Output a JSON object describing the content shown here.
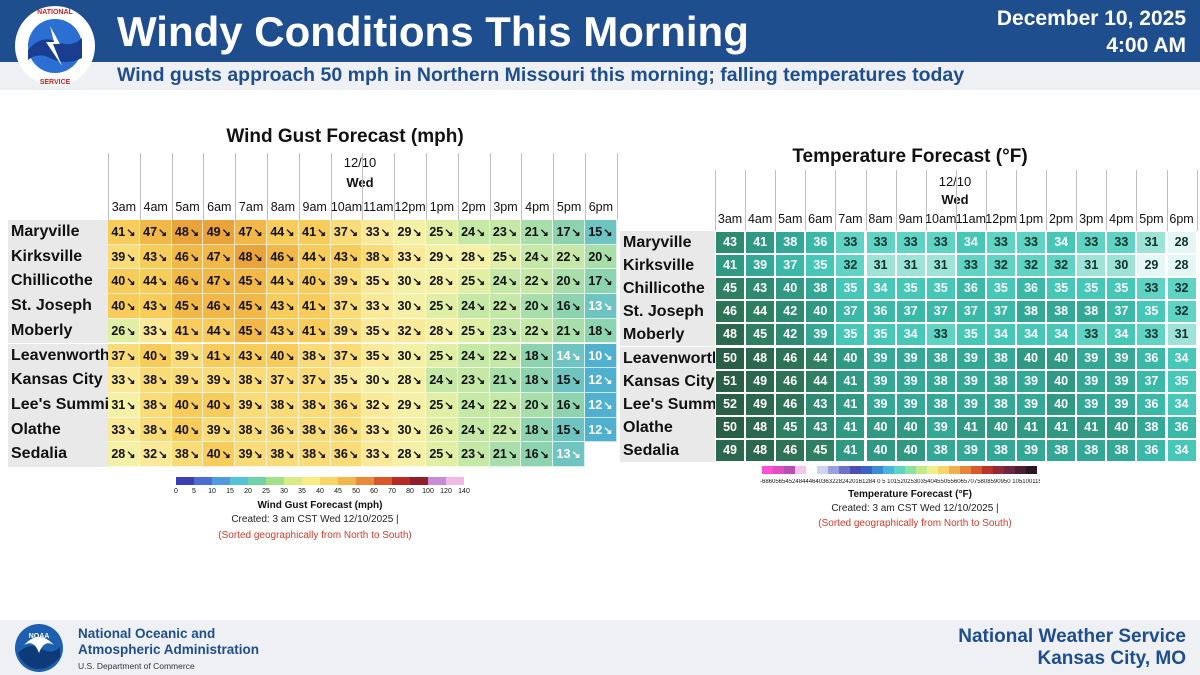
{
  "header": {
    "title": "Windy Conditions This Morning",
    "date": "December 10, 2025",
    "time": "4:00 AM",
    "subtitle": "Wind gusts approach 50 mph in Northern Missouri this morning; falling temperatures today",
    "logo_text": "NATIONAL WEATHER SERVICE"
  },
  "chart_data": [
    {
      "type": "heatmap",
      "title": "Wind Gust Forecast (mph)",
      "date_label": "12/10",
      "day_label": "Wed",
      "x": [
        "3am",
        "4am",
        "5am",
        "6am",
        "7am",
        "8am",
        "9am",
        "10am",
        "11am",
        "12pm",
        "1pm",
        "2pm",
        "3pm",
        "4pm",
        "5pm",
        "6pm"
      ],
      "y": [
        "Maryville",
        "Kirksville",
        "Chillicothe",
        "St. Joseph",
        "Moberly",
        "Leavenworth",
        "Kansas City",
        "Lee's Summit",
        "Olathe",
        "Sedalia"
      ],
      "values": [
        [
          41,
          47,
          48,
          49,
          47,
          44,
          41,
          37,
          33,
          29,
          25,
          24,
          23,
          21,
          17,
          15
        ],
        [
          39,
          43,
          46,
          47,
          48,
          46,
          44,
          43,
          38,
          33,
          29,
          28,
          25,
          24,
          22,
          20
        ],
        [
          40,
          44,
          46,
          47,
          45,
          44,
          40,
          39,
          35,
          30,
          28,
          25,
          24,
          22,
          20,
          17
        ],
        [
          40,
          43,
          45,
          46,
          45,
          43,
          41,
          37,
          33,
          30,
          25,
          24,
          22,
          20,
          16,
          13
        ],
        [
          26,
          33,
          41,
          44,
          45,
          43,
          41,
          39,
          35,
          32,
          28,
          25,
          23,
          22,
          21,
          18
        ],
        [
          37,
          40,
          39,
          41,
          43,
          40,
          38,
          37,
          35,
          30,
          25,
          24,
          22,
          18,
          14,
          10
        ],
        [
          33,
          38,
          39,
          39,
          38,
          37,
          37,
          35,
          30,
          28,
          24,
          23,
          21,
          18,
          15,
          12
        ],
        [
          31,
          38,
          40,
          40,
          39,
          38,
          38,
          36,
          32,
          29,
          25,
          24,
          22,
          20,
          16,
          12
        ],
        [
          33,
          38,
          40,
          39,
          38,
          36,
          38,
          36,
          33,
          30,
          26,
          24,
          22,
          18,
          15,
          12
        ],
        [
          28,
          32,
          38,
          40,
          39,
          38,
          38,
          36,
          33,
          28,
          25,
          23,
          21,
          16,
          13,
          null
        ]
      ],
      "legend_title": "Wind Gust Forecast (mph)",
      "legend_ticks": [
        "0",
        "5",
        "10",
        "15",
        "20",
        "25",
        "30",
        "35",
        "40",
        "45",
        "50",
        "60",
        "70",
        "80",
        "100",
        "120",
        "140"
      ],
      "created": "Created: 3 am CST Wed 12/10/2025  |",
      "sorted_note": "(Sorted geographically from North to South)"
    },
    {
      "type": "heatmap",
      "title": "Temperature Forecast (°F)",
      "date_label": "12/10",
      "day_label": "Wed",
      "x": [
        "3am",
        "4am",
        "5am",
        "6am",
        "7am",
        "8am",
        "9am",
        "10am",
        "11am",
        "12pm",
        "1pm",
        "2pm",
        "3pm",
        "4pm",
        "5pm",
        "6pm"
      ],
      "y": [
        "Maryville",
        "Kirksville",
        "Chillicothe",
        "St. Joseph",
        "Moberly",
        "Leavenworth",
        "Kansas City",
        "Lee's Summit",
        "Olathe",
        "Sedalia"
      ],
      "values": [
        [
          43,
          41,
          38,
          36,
          33,
          33,
          33,
          33,
          34,
          33,
          33,
          34,
          33,
          33,
          31,
          28
        ],
        [
          41,
          39,
          37,
          35,
          32,
          31,
          31,
          31,
          33,
          32,
          32,
          32,
          31,
          30,
          29,
          28
        ],
        [
          45,
          43,
          40,
          38,
          35,
          34,
          35,
          35,
          36,
          35,
          36,
          35,
          35,
          35,
          33,
          32
        ],
        [
          46,
          44,
          42,
          40,
          37,
          36,
          37,
          37,
          37,
          37,
          38,
          38,
          38,
          37,
          35,
          32
        ],
        [
          48,
          45,
          42,
          39,
          35,
          35,
          34,
          33,
          35,
          34,
          34,
          34,
          33,
          34,
          33,
          31
        ],
        [
          50,
          48,
          46,
          44,
          40,
          39,
          39,
          38,
          39,
          38,
          40,
          40,
          39,
          39,
          36,
          34
        ],
        [
          51,
          49,
          46,
          44,
          41,
          39,
          39,
          38,
          39,
          38,
          39,
          40,
          39,
          39,
          37,
          35
        ],
        [
          52,
          49,
          46,
          43,
          41,
          39,
          39,
          38,
          39,
          38,
          39,
          40,
          39,
          39,
          36,
          34
        ],
        [
          50,
          48,
          45,
          43,
          41,
          40,
          40,
          39,
          41,
          40,
          41,
          41,
          41,
          40,
          38,
          36
        ],
        [
          49,
          48,
          46,
          45,
          41,
          40,
          40,
          38,
          39,
          38,
          39,
          38,
          38,
          38,
          36,
          34
        ]
      ],
      "legend_title": "Temperature Forecast (°F)",
      "legend_scale": "-6860565452484446403632282420161284 0 5 1015202530354045505560657075808590950 10510011520125130135140",
      "created": "Created: 3 am CST Wed 12/10/2025  |",
      "sorted_note": "(Sorted geographically from North to South)"
    }
  ],
  "footer": {
    "noaa_line1": "National Oceanic and",
    "noaa_line2": "Atmospheric Administration",
    "noaa_dept": "U.S. Department of Commerce",
    "nws_line1": "National Weather Service",
    "nws_line2": "Kansas City, MO",
    "noaa_logo_text": "NOAA"
  },
  "colors": {
    "header_blue": "#1f4e8f",
    "subbar_gray": "#eef0f4",
    "note_red": "#d43a2a"
  }
}
